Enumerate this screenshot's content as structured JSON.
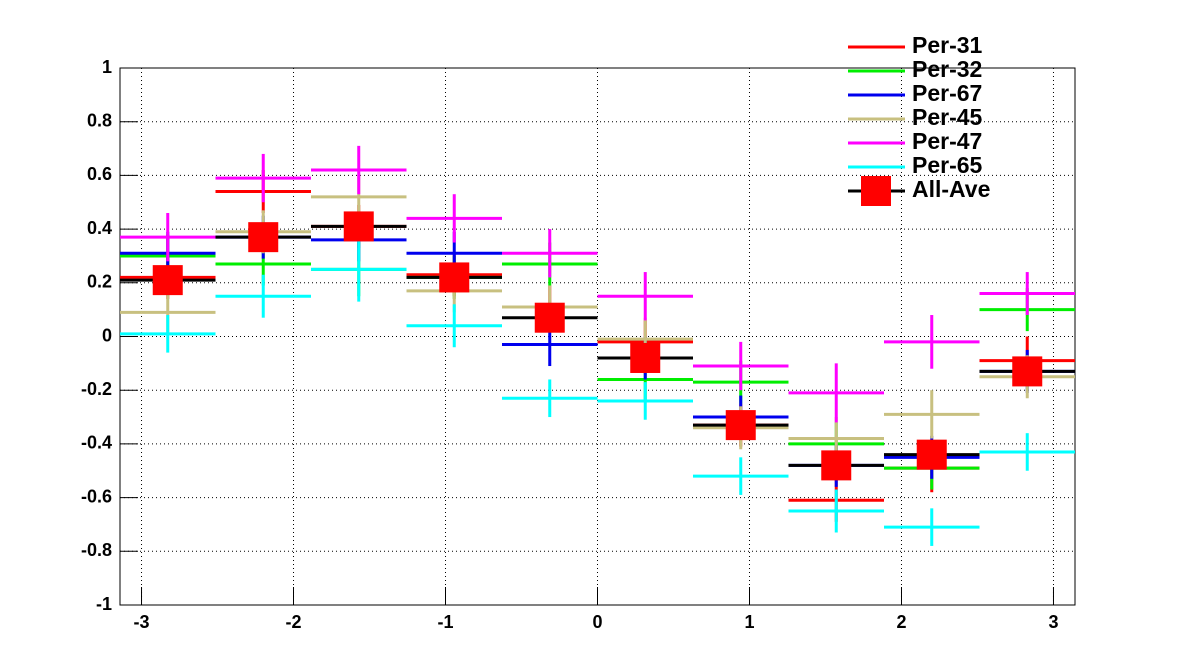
{
  "chart_data": {
    "type": "histogram-errors",
    "bins": [
      -3.1416,
      -2.5133,
      -1.885,
      -1.2566,
      -0.6283,
      0,
      0.6283,
      1.2566,
      1.885,
      2.5133,
      3.1416
    ],
    "xlim": [
      -3.1416,
      3.1416
    ],
    "xticks": [
      -3,
      -2,
      -1,
      0,
      1,
      2,
      3
    ],
    "ylim": [
      -1,
      1
    ],
    "yticks": [
      -1,
      -0.8,
      -0.6,
      -0.4,
      -0.2,
      0,
      0.2,
      0.4,
      0.6,
      0.8,
      1
    ],
    "grid": true,
    "legend": "top-right",
    "series": [
      {
        "name": "Per-31",
        "color": "#ff0000",
        "values": [
          0.22,
          0.54,
          0.41,
          0.23,
          0.11,
          -0.02,
          -0.33,
          -0.61,
          -0.49,
          -0.09
        ],
        "errors": [
          0.08,
          0.08,
          0.08,
          0.08,
          0.08,
          0.08,
          0.08,
          0.08,
          0.09,
          0.09
        ]
      },
      {
        "name": "Per-32",
        "color": "#00ee00",
        "values": [
          0.3,
          0.27,
          0.25,
          0.22,
          0.27,
          -0.16,
          -0.17,
          -0.4,
          -0.49,
          0.1
        ],
        "errors": [
          0.08,
          0.08,
          0.1,
          0.08,
          0.08,
          0.08,
          0.08,
          0.08,
          0.08,
          0.08
        ]
      },
      {
        "name": "Per-67",
        "color": "#0000ee",
        "values": [
          0.31,
          0.37,
          0.36,
          0.31,
          -0.03,
          -0.08,
          -0.3,
          -0.48,
          -0.45,
          -0.13
        ],
        "errors": [
          0.08,
          0.08,
          0.08,
          0.08,
          0.08,
          0.08,
          0.08,
          0.08,
          0.08,
          0.08
        ]
      },
      {
        "name": "Per-45",
        "color": "#c8c080",
        "values": [
          0.09,
          0.39,
          0.52,
          0.17,
          0.11,
          -0.01,
          -0.34,
          -0.38,
          -0.29,
          -0.15
        ],
        "errors": [
          0.08,
          0.08,
          0.08,
          0.08,
          0.08,
          0.08,
          0.08,
          0.08,
          0.09,
          0.08
        ]
      },
      {
        "name": "Per-47",
        "color": "#ff00ff",
        "values": [
          0.37,
          0.59,
          0.62,
          0.44,
          0.31,
          0.15,
          -0.11,
          -0.21,
          -0.02,
          0.16
        ],
        "errors": [
          0.09,
          0.09,
          0.09,
          0.09,
          0.09,
          0.09,
          0.09,
          0.11,
          0.1,
          0.08
        ]
      },
      {
        "name": "Per-65",
        "color": "#00ffff",
        "values": [
          0.01,
          0.15,
          0.25,
          0.04,
          -0.23,
          -0.24,
          -0.52,
          -0.65,
          -0.71,
          -0.43
        ],
        "errors": [
          0.07,
          0.08,
          0.12,
          0.08,
          0.07,
          0.07,
          0.07,
          0.08,
          0.07,
          0.07
        ]
      },
      {
        "name": "All-Ave",
        "color": "#000000",
        "marker_color": "#ff0000",
        "values": [
          0.21,
          0.37,
          0.41,
          0.22,
          0.07,
          -0.08,
          -0.33,
          -0.48,
          -0.44,
          -0.13
        ],
        "errors": [
          0.03,
          0.03,
          0.03,
          0.03,
          0.03,
          0.03,
          0.03,
          0.03,
          0.03,
          0.03
        ]
      }
    ]
  }
}
